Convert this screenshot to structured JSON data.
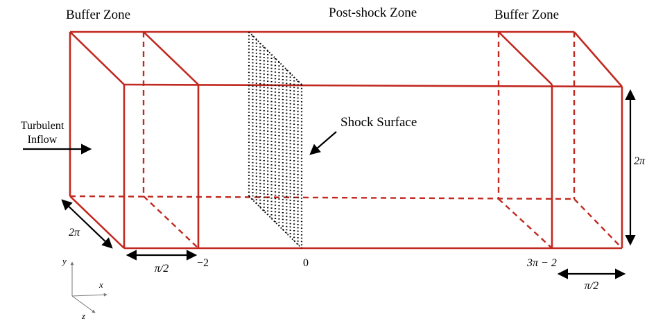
{
  "zones": {
    "buffer_left": "Buffer Zone",
    "post_shock": "Post-shock Zone",
    "buffer_right": "Buffer Zone"
  },
  "inflow": {
    "line1": "Turbulent",
    "line2": "Inflow"
  },
  "shock_label": "Shock Surface",
  "dimensions": {
    "height": "2π",
    "depth": "2π",
    "left_buffer_width": "π/2",
    "right_buffer_width": "π/2"
  },
  "x_ticks": {
    "buffer_start": "−2",
    "shock": "0",
    "buffer_end": "3π − 2"
  },
  "axes": {
    "y": "y",
    "x": "x",
    "z": "z"
  },
  "colors": {
    "box": "#c1281f",
    "arrows": "#000000",
    "shock": "#000000"
  }
}
